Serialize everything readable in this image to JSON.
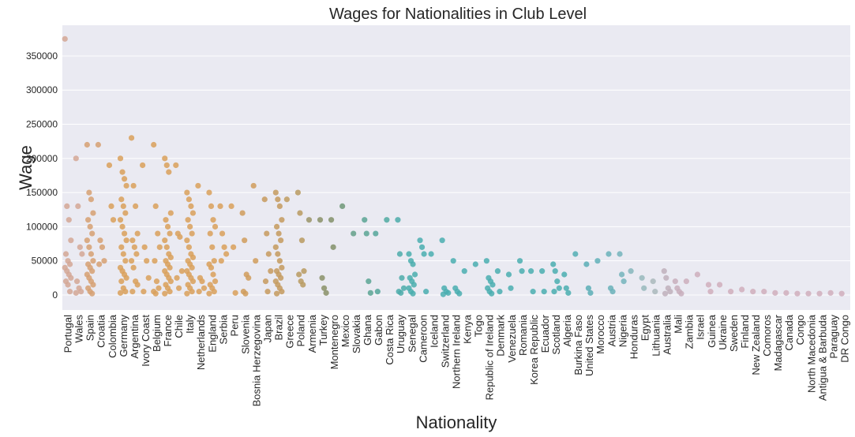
{
  "chart_data": {
    "type": "scatter",
    "title": "Wages for Nationalities in Club Level",
    "xlabel": "Nationality",
    "ylabel": "Wage",
    "ylim": [
      -22000,
      395000
    ],
    "yticks": [
      0,
      50000,
      100000,
      150000,
      200000,
      250000,
      300000,
      350000
    ],
    "grid": true,
    "background": "#eaeaf2",
    "series": [
      {
        "category": "Portugal",
        "color": "#d3a795",
        "values": [
          375000,
          130000,
          110000,
          80000,
          60000,
          50000,
          45000,
          40000,
          35000,
          30000,
          25000,
          20000,
          15000,
          5000
        ]
      },
      {
        "category": "Wales",
        "color": "#d3a795",
        "values": [
          200000,
          130000,
          70000,
          60000,
          20000,
          10000,
          5000,
          3000
        ]
      },
      {
        "category": "Spain",
        "color": "#d6a072",
        "values": [
          220000,
          150000,
          140000,
          120000,
          110000,
          100000,
          90000,
          80000,
          70000,
          60000,
          50000,
          45000,
          40000,
          35000,
          30000,
          25000,
          20000,
          15000,
          10000,
          5000,
          2000
        ]
      },
      {
        "category": "Croatia",
        "color": "#d6a072",
        "values": [
          220000,
          80000,
          70000,
          50000,
          45000
        ]
      },
      {
        "category": "Colombia",
        "color": "#d9a05a",
        "values": [
          190000,
          130000,
          110000
        ]
      },
      {
        "category": "Germany",
        "color": "#d9a05a",
        "values": [
          200000,
          180000,
          170000,
          160000,
          140000,
          130000,
          120000,
          110000,
          100000,
          90000,
          80000,
          70000,
          60000,
          50000,
          40000,
          35000,
          30000,
          25000,
          20000,
          10000,
          5000,
          3000
        ]
      },
      {
        "category": "Argentina",
        "color": "#d9a05a",
        "values": [
          230000,
          160000,
          130000,
          90000,
          80000,
          70000,
          60000,
          50000,
          40000,
          20000,
          15000,
          5000
        ]
      },
      {
        "category": "Ivory Coast",
        "color": "#d9a05a",
        "values": [
          190000,
          70000,
          50000,
          25000,
          5000
        ]
      },
      {
        "category": "Belgium",
        "color": "#d9a05a",
        "values": [
          220000,
          130000,
          90000,
          70000,
          50000,
          20000,
          10000,
          5000,
          2000
        ]
      },
      {
        "category": "France",
        "color": "#d9a05a",
        "values": [
          200000,
          190000,
          180000,
          120000,
          110000,
          100000,
          90000,
          80000,
          70000,
          60000,
          55000,
          50000,
          45000,
          40000,
          35000,
          30000,
          25000,
          20000,
          15000,
          10000,
          5000,
          2000
        ]
      },
      {
        "category": "Chile",
        "color": "#d9a05a",
        "values": [
          190000,
          90000,
          85000,
          35000,
          25000,
          10000
        ]
      },
      {
        "category": "Italy",
        "color": "#d9a05a",
        "values": [
          150000,
          140000,
          130000,
          120000,
          110000,
          100000,
          90000,
          80000,
          70000,
          60000,
          55000,
          50000,
          45000,
          40000,
          35000,
          30000,
          25000,
          20000,
          15000,
          10000,
          5000,
          2000
        ]
      },
      {
        "category": "Netherlands",
        "color": "#d9a05a",
        "values": [
          160000,
          25000,
          20000,
          10000,
          5000
        ]
      },
      {
        "category": "England",
        "color": "#d9a05a",
        "values": [
          150000,
          130000,
          110000,
          100000,
          90000,
          70000,
          50000,
          45000,
          40000,
          30000,
          20000,
          15000,
          10000,
          5000,
          2000
        ]
      },
      {
        "category": "Serbia",
        "color": "#d9a05a",
        "values": [
          130000,
          90000,
          70000,
          60000,
          50000
        ]
      },
      {
        "category": "Peru",
        "color": "#d9a05a",
        "values": [
          130000,
          70000,
          3000
        ]
      },
      {
        "category": "Slovenia",
        "color": "#d09c5c",
        "values": [
          120000,
          80000,
          30000,
          25000,
          5000,
          2000
        ]
      },
      {
        "category": "Bosnia Herzegovina",
        "color": "#d09c5c",
        "values": [
          160000,
          50000
        ]
      },
      {
        "category": "Japan",
        "color": "#c79a5e",
        "values": [
          140000,
          90000,
          60000,
          35000,
          20000,
          5000
        ]
      },
      {
        "category": "Brazil",
        "color": "#c49a5e",
        "values": [
          150000,
          140000,
          130000,
          110000,
          100000,
          90000,
          80000,
          70000,
          60000,
          50000,
          40000,
          35000,
          30000,
          25000,
          20000,
          15000,
          10000,
          5000,
          2000
        ]
      },
      {
        "category": "Greece",
        "color": "#c09c60",
        "values": [
          140000
        ]
      },
      {
        "category": "Poland",
        "color": "#b89a60",
        "values": [
          150000,
          120000,
          80000,
          35000,
          30000,
          20000,
          15000
        ]
      },
      {
        "category": "Armenia",
        "color": "#9a9468",
        "values": [
          110000
        ]
      },
      {
        "category": "Turkey",
        "color": "#8a9068",
        "values": [
          110000,
          25000,
          10000,
          3000
        ]
      },
      {
        "category": "Montenegro",
        "color": "#82906a",
        "values": [
          110000,
          70000
        ]
      },
      {
        "category": "Mexico",
        "color": "#6e9878",
        "values": [
          130000
        ]
      },
      {
        "category": "Slovakia",
        "color": "#64a08a",
        "values": [
          90000
        ]
      },
      {
        "category": "Ghana",
        "color": "#5aa494",
        "values": [
          110000,
          90000,
          20000,
          3000
        ]
      },
      {
        "category": "Gabon",
        "color": "#55a69a",
        "values": [
          90000,
          5000
        ]
      },
      {
        "category": "Costa Rica",
        "color": "#50aaa2",
        "values": [
          110000
        ]
      },
      {
        "category": "Uruguay",
        "color": "#4cacaa",
        "values": [
          110000,
          60000,
          25000,
          10000,
          5000,
          3000
        ]
      },
      {
        "category": "Senegal",
        "color": "#4aaeae",
        "values": [
          60000,
          50000,
          45000,
          30000,
          25000,
          20000,
          15000,
          10000,
          5000,
          2000
        ]
      },
      {
        "category": "Cameroon",
        "color": "#4aaeb0",
        "values": [
          80000,
          70000,
          60000,
          5000
        ]
      },
      {
        "category": "Iceland",
        "color": "#4aaeb0",
        "values": [
          60000
        ]
      },
      {
        "category": "Switzerland",
        "color": "#4aaeb0",
        "values": [
          80000,
          10000,
          5000,
          3000,
          1000
        ]
      },
      {
        "category": "Northern Ireland",
        "color": "#4aaeb0",
        "values": [
          50000,
          10000,
          5000,
          2000
        ]
      },
      {
        "category": "Kenya",
        "color": "#4aaeb0",
        "values": [
          35000
        ]
      },
      {
        "category": "Togo",
        "color": "#4aaeb0",
        "values": [
          45000
        ]
      },
      {
        "category": "Republic of Ireland",
        "color": "#4aaeb0",
        "values": [
          50000,
          25000,
          20000,
          15000,
          10000,
          5000,
          2000
        ]
      },
      {
        "category": "Denmark",
        "color": "#4aaeb0",
        "values": [
          35000,
          5000
        ]
      },
      {
        "category": "Venezuela",
        "color": "#4aaeb0",
        "values": [
          30000,
          10000
        ]
      },
      {
        "category": "Romania",
        "color": "#4aaeb0",
        "values": [
          50000,
          35000
        ]
      },
      {
        "category": "Korea Republic",
        "color": "#4aaeb0",
        "values": [
          35000,
          5000
        ]
      },
      {
        "category": "Ecuador",
        "color": "#4aaeb0",
        "values": [
          35000,
          5000
        ]
      },
      {
        "category": "Scotland",
        "color": "#4aaeb0",
        "values": [
          45000,
          35000,
          20000,
          10000,
          5000
        ]
      },
      {
        "category": "Algeria",
        "color": "#4aaeb0",
        "values": [
          30000,
          10000,
          3000
        ]
      },
      {
        "category": "Burkina Faso",
        "color": "#52aeb4",
        "values": [
          60000
        ]
      },
      {
        "category": "United States",
        "color": "#5aaeb6",
        "values": [
          45000,
          10000,
          3000
        ]
      },
      {
        "category": "Morocco",
        "color": "#62b0b8",
        "values": [
          50000
        ]
      },
      {
        "category": "Austria",
        "color": "#6ab2ba",
        "values": [
          60000,
          10000,
          5000
        ]
      },
      {
        "category": "Nigeria",
        "color": "#74b4bc",
        "values": [
          60000,
          30000,
          20000
        ]
      },
      {
        "category": "Honduras",
        "color": "#86b6bc",
        "values": [
          35000
        ]
      },
      {
        "category": "Egypt",
        "color": "#98b8bc",
        "values": [
          25000,
          10000
        ]
      },
      {
        "category": "Lithuania",
        "color": "#aab8bc",
        "values": [
          20000,
          5000
        ]
      },
      {
        "category": "Australia",
        "color": "#c0b0bc",
        "values": [
          35000,
          25000,
          10000,
          5000,
          2000
        ]
      },
      {
        "category": "Mali",
        "color": "#c8aebc",
        "values": [
          20000,
          10000,
          5000,
          2000
        ]
      },
      {
        "category": "Zambia",
        "color": "#ccaebc",
        "values": [
          20000
        ]
      },
      {
        "category": "Israel",
        "color": "#ceaebc",
        "values": [
          30000
        ]
      },
      {
        "category": "Guinea",
        "color": "#d0aebc",
        "values": [
          15000,
          5000
        ]
      },
      {
        "category": "Ukraine",
        "color": "#d0aebc",
        "values": [
          15000
        ]
      },
      {
        "category": "Sweden",
        "color": "#d0aebc",
        "values": [
          5000
        ]
      },
      {
        "category": "Finland",
        "color": "#d0aebc",
        "values": [
          8000
        ]
      },
      {
        "category": "New Zealand",
        "color": "#d0aebc",
        "values": [
          5000
        ]
      },
      {
        "category": "Comoros",
        "color": "#d0aebc",
        "values": [
          5000
        ]
      },
      {
        "category": "Madagascar",
        "color": "#d0aebc",
        "values": [
          3000
        ]
      },
      {
        "category": "Canada",
        "color": "#d0aebc",
        "values": [
          3000
        ]
      },
      {
        "category": "Congo",
        "color": "#d0aebc",
        "values": [
          2000
        ]
      },
      {
        "category": "North Macedonia",
        "color": "#d0aebc",
        "values": [
          2000
        ]
      },
      {
        "category": "Antigua & Barbuda",
        "color": "#d0aebc",
        "values": [
          2000
        ]
      },
      {
        "category": "Paraguay",
        "color": "#d0aebc",
        "values": [
          3000
        ]
      },
      {
        "category": "DR Congo",
        "color": "#d0aebc",
        "values": [
          2000
        ]
      }
    ]
  }
}
